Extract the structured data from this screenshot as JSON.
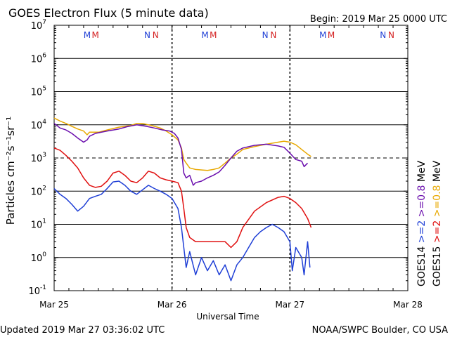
{
  "header": {
    "title": "GOES Electron Flux (5 minute data)",
    "begin": "Begin: 2019 Mar 25 0000 UTC"
  },
  "footer": {
    "updated": "Updated 2019 Mar 27 03:36:02 UTC",
    "credit": "NOAA/SWPC Boulder, CO USA"
  },
  "chart_data": {
    "type": "line",
    "title": "GOES Electron Flux (5 minute data)",
    "xlabel": "Universal Time",
    "ylabel": "Particles cm⁻²s⁻¹sr⁻¹",
    "x_unit": "days since 2019-03-25 00:00 UTC",
    "xlim": [
      0,
      3
    ],
    "yscale": "log",
    "ylim": [
      0.1,
      10000000
    ],
    "grid": "horizontal at decades",
    "threshold_line": 1000,
    "xticks": [
      {
        "x": 0,
        "label": "Mar 25"
      },
      {
        "x": 1,
        "label": "Mar 26"
      },
      {
        "x": 2,
        "label": "Mar 27"
      },
      {
        "x": 3,
        "label": "Mar 28"
      }
    ],
    "yticks": [
      {
        "y": 10000000,
        "base": "10",
        "exp": "7"
      },
      {
        "y": 1000000,
        "base": "10",
        "exp": "6"
      },
      {
        "y": 100000,
        "base": "10",
        "exp": "5"
      },
      {
        "y": 10000,
        "base": "10",
        "exp": "4"
      },
      {
        "y": 1000,
        "base": "10",
        "exp": "3"
      },
      {
        "y": 100,
        "base": "10",
        "exp": "2"
      },
      {
        "y": 10,
        "base": "10",
        "exp": "1"
      },
      {
        "y": 1,
        "base": "10",
        "exp": "0"
      },
      {
        "y": 0.1,
        "base": "10",
        "exp": "-1"
      }
    ],
    "markers": [
      {
        "day": 0.28,
        "label": "M",
        "color": "#1f3fd6"
      },
      {
        "day": 0.35,
        "label": "M",
        "color": "#d42020"
      },
      {
        "day": 0.79,
        "label": "N",
        "color": "#1f3fd6"
      },
      {
        "day": 0.86,
        "label": "N",
        "color": "#d42020"
      },
      {
        "day": 1.28,
        "label": "M",
        "color": "#1f3fd6"
      },
      {
        "day": 1.35,
        "label": "M",
        "color": "#d42020"
      },
      {
        "day": 1.79,
        "label": "N",
        "color": "#1f3fd6"
      },
      {
        "day": 1.86,
        "label": "N",
        "color": "#d42020"
      },
      {
        "day": 2.28,
        "label": "M",
        "color": "#1f3fd6"
      },
      {
        "day": 2.35,
        "label": "M",
        "color": "#d42020"
      },
      {
        "day": 2.79,
        "label": "N",
        "color": "#1f3fd6"
      },
      {
        "day": 2.86,
        "label": "N",
        "color": "#d42020"
      }
    ],
    "legend_right": [
      {
        "text": "GOES14",
        "color": "#000000"
      },
      {
        "text": ">=2",
        "color": "#1f3fd6"
      },
      {
        "text": ">=0.8",
        "color": "#6a0dad"
      },
      {
        "text": "MeV",
        "color": "#000000"
      },
      {
        "text": "GOES15",
        "color": "#000000"
      },
      {
        "text": ">=2",
        "color": "#e01010"
      },
      {
        "text": ">=0.8",
        "color": "#e8a800"
      },
      {
        "text": "MeV",
        "color": "#000000"
      }
    ],
    "series": [
      {
        "name": "GOES15 >=0.8 MeV",
        "color": "#e8a800",
        "points": [
          [
            0.0,
            16000
          ],
          [
            0.05,
            13000
          ],
          [
            0.1,
            11000
          ],
          [
            0.15,
            9000
          ],
          [
            0.2,
            7500
          ],
          [
            0.25,
            6500
          ],
          [
            0.28,
            5000
          ],
          [
            0.3,
            6000
          ],
          [
            0.38,
            6000
          ],
          [
            0.45,
            7000
          ],
          [
            0.55,
            8500
          ],
          [
            0.65,
            9500
          ],
          [
            0.7,
            11000
          ],
          [
            0.75,
            11000
          ],
          [
            0.8,
            10000
          ],
          [
            0.85,
            9000
          ],
          [
            0.9,
            8000
          ],
          [
            0.95,
            6500
          ],
          [
            1.0,
            5000
          ],
          [
            1.05,
            3500
          ],
          [
            1.08,
            2000
          ],
          [
            1.1,
            900
          ],
          [
            1.12,
            700
          ],
          [
            1.15,
            500
          ],
          [
            1.2,
            450
          ],
          [
            1.3,
            420
          ],
          [
            1.35,
            450
          ],
          [
            1.4,
            500
          ],
          [
            1.45,
            700
          ],
          [
            1.5,
            1000
          ],
          [
            1.55,
            1300
          ],
          [
            1.6,
            1800
          ],
          [
            1.7,
            2200
          ],
          [
            1.8,
            2600
          ],
          [
            1.9,
            3000
          ],
          [
            1.95,
            3200
          ],
          [
            2.0,
            3000
          ],
          [
            2.05,
            2500
          ],
          [
            2.1,
            1800
          ],
          [
            2.15,
            1300
          ],
          [
            2.18,
            1100
          ]
        ]
      },
      {
        "name": "GOES14 >=0.8 MeV",
        "color": "#6a0dad",
        "points": [
          [
            0.0,
            11000
          ],
          [
            0.05,
            8000
          ],
          [
            0.1,
            7000
          ],
          [
            0.15,
            5500
          ],
          [
            0.2,
            4000
          ],
          [
            0.25,
            3000
          ],
          [
            0.28,
            3500
          ],
          [
            0.3,
            4500
          ],
          [
            0.35,
            5500
          ],
          [
            0.45,
            6500
          ],
          [
            0.55,
            7500
          ],
          [
            0.62,
            8800
          ],
          [
            0.7,
            10000
          ],
          [
            0.78,
            9000
          ],
          [
            0.85,
            8000
          ],
          [
            0.92,
            7000
          ],
          [
            0.98,
            6500
          ],
          [
            1.02,
            5500
          ],
          [
            1.05,
            4000
          ],
          [
            1.08,
            1800
          ],
          [
            1.1,
            350
          ],
          [
            1.12,
            250
          ],
          [
            1.15,
            300
          ],
          [
            1.18,
            150
          ],
          [
            1.2,
            180
          ],
          [
            1.25,
            200
          ],
          [
            1.3,
            250
          ],
          [
            1.35,
            300
          ],
          [
            1.4,
            380
          ],
          [
            1.45,
            600
          ],
          [
            1.5,
            1000
          ],
          [
            1.55,
            1600
          ],
          [
            1.6,
            2000
          ],
          [
            1.7,
            2400
          ],
          [
            1.8,
            2600
          ],
          [
            1.9,
            2300
          ],
          [
            1.95,
            2100
          ],
          [
            2.0,
            1400
          ],
          [
            2.05,
            900
          ],
          [
            2.1,
            800
          ],
          [
            2.12,
            550
          ],
          [
            2.15,
            700
          ]
        ]
      },
      {
        "name": "GOES15 >=2 MeV",
        "color": "#e01010",
        "points": [
          [
            0.0,
            2000
          ],
          [
            0.05,
            1700
          ],
          [
            0.1,
            1200
          ],
          [
            0.15,
            800
          ],
          [
            0.2,
            500
          ],
          [
            0.25,
            250
          ],
          [
            0.3,
            150
          ],
          [
            0.35,
            130
          ],
          [
            0.4,
            140
          ],
          [
            0.45,
            200
          ],
          [
            0.5,
            350
          ],
          [
            0.55,
            400
          ],
          [
            0.6,
            300
          ],
          [
            0.65,
            200
          ],
          [
            0.7,
            180
          ],
          [
            0.75,
            250
          ],
          [
            0.8,
            400
          ],
          [
            0.85,
            350
          ],
          [
            0.9,
            250
          ],
          [
            0.95,
            220
          ],
          [
            1.0,
            200
          ],
          [
            1.05,
            180
          ],
          [
            1.08,
            100
          ],
          [
            1.1,
            30
          ],
          [
            1.12,
            8
          ],
          [
            1.15,
            4
          ],
          [
            1.2,
            3
          ],
          [
            1.3,
            3
          ],
          [
            1.4,
            3
          ],
          [
            1.45,
            3
          ],
          [
            1.5,
            2
          ],
          [
            1.55,
            3
          ],
          [
            1.6,
            8
          ],
          [
            1.7,
            25
          ],
          [
            1.8,
            45
          ],
          [
            1.9,
            65
          ],
          [
            1.95,
            70
          ],
          [
            2.0,
            60
          ],
          [
            2.05,
            45
          ],
          [
            2.1,
            30
          ],
          [
            2.15,
            15
          ],
          [
            2.18,
            8
          ]
        ]
      },
      {
        "name": "GOES14 >=2 MeV",
        "color": "#1f3fd6",
        "points": [
          [
            0.0,
            120
          ],
          [
            0.05,
            80
          ],
          [
            0.1,
            60
          ],
          [
            0.15,
            40
          ],
          [
            0.2,
            25
          ],
          [
            0.25,
            35
          ],
          [
            0.3,
            60
          ],
          [
            0.35,
            70
          ],
          [
            0.4,
            80
          ],
          [
            0.45,
            120
          ],
          [
            0.5,
            190
          ],
          [
            0.55,
            200
          ],
          [
            0.6,
            150
          ],
          [
            0.65,
            100
          ],
          [
            0.7,
            80
          ],
          [
            0.75,
            110
          ],
          [
            0.8,
            150
          ],
          [
            0.85,
            120
          ],
          [
            0.9,
            100
          ],
          [
            0.95,
            80
          ],
          [
            1.0,
            60
          ],
          [
            1.05,
            30
          ],
          [
            1.08,
            8
          ],
          [
            1.1,
            2
          ],
          [
            1.12,
            0.5
          ],
          [
            1.15,
            1.5
          ],
          [
            1.2,
            0.3
          ],
          [
            1.25,
            1
          ],
          [
            1.3,
            0.4
          ],
          [
            1.35,
            0.8
          ],
          [
            1.4,
            0.3
          ],
          [
            1.45,
            0.6
          ],
          [
            1.5,
            0.2
          ],
          [
            1.55,
            0.6
          ],
          [
            1.6,
            1
          ],
          [
            1.65,
            2
          ],
          [
            1.7,
            4
          ],
          [
            1.75,
            6
          ],
          [
            1.8,
            8
          ],
          [
            1.85,
            10
          ],
          [
            1.9,
            8
          ],
          [
            1.95,
            6
          ],
          [
            2.0,
            3
          ],
          [
            2.02,
            0.4
          ],
          [
            2.05,
            2
          ],
          [
            2.1,
            1
          ],
          [
            2.12,
            0.3
          ],
          [
            2.15,
            3
          ],
          [
            2.17,
            0.5
          ]
        ]
      }
    ]
  }
}
